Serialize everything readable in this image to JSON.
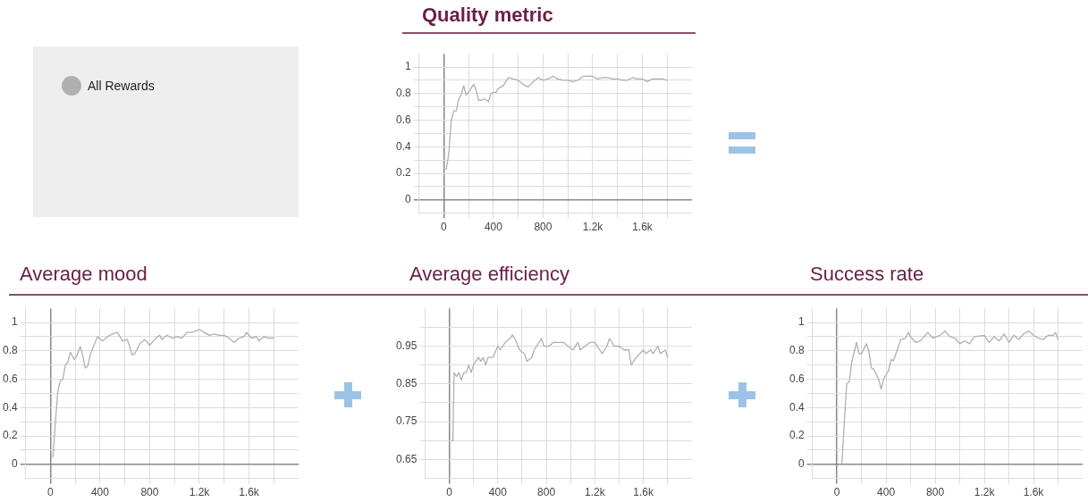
{
  "chart_data": [
    {
      "type": "line",
      "title": "Quality metric",
      "legend": "left",
      "grid": true,
      "xlim": [
        -200,
        2000
      ],
      "ylim": [
        -0.1,
        1.1
      ],
      "xticks": [
        0,
        {
          "value": 200,
          "label": null
        },
        400,
        {
          "value": 600,
          "label": null
        },
        800,
        {
          "value": 1000,
          "label": null
        },
        {
          "value": 1200,
          "label": "1.2k"
        },
        {
          "value": 1400,
          "label": null
        },
        {
          "value": 1600,
          "label": "1.6k"
        },
        {
          "value": 1800,
          "label": null
        }
      ],
      "yticks": [
        0,
        {
          "value": 0.1,
          "label": null
        },
        0.2,
        {
          "value": 0.3,
          "label": null
        },
        0.4,
        {
          "value": 0.5,
          "label": null
        },
        0.6,
        {
          "value": 0.7,
          "label": null
        },
        0.8,
        {
          "value": 0.9,
          "label": null
        },
        1
      ],
      "series": [
        {
          "name": "All Rewards",
          "color": "#b0b0b0",
          "x": [
            20,
            40,
            60,
            80,
            100,
            120,
            140,
            160,
            180,
            200,
            240,
            260,
            280,
            300,
            330,
            360,
            380,
            400,
            420,
            440,
            480,
            520,
            560,
            600,
            640,
            680,
            720,
            760,
            800,
            840,
            880,
            920,
            960,
            1000,
            1040,
            1080,
            1120,
            1160,
            1200,
            1240,
            1280,
            1320,
            1360,
            1400,
            1440,
            1480,
            1520,
            1560,
            1600,
            1640,
            1680,
            1720,
            1760,
            1800
          ],
          "values": [
            0.23,
            0.35,
            0.6,
            0.67,
            0.67,
            0.76,
            0.79,
            0.86,
            0.79,
            0.81,
            0.87,
            0.83,
            0.75,
            0.75,
            0.76,
            0.74,
            0.8,
            0.81,
            0.81,
            0.84,
            0.86,
            0.92,
            0.91,
            0.9,
            0.87,
            0.85,
            0.89,
            0.92,
            0.9,
            0.91,
            0.93,
            0.91,
            0.9,
            0.9,
            0.89,
            0.9,
            0.93,
            0.93,
            0.93,
            0.91,
            0.92,
            0.92,
            0.91,
            0.91,
            0.9,
            0.9,
            0.92,
            0.91,
            0.91,
            0.89,
            0.91,
            0.91,
            0.91,
            0.9
          ]
        }
      ]
    },
    {
      "type": "line",
      "title": "Average mood",
      "grid": true,
      "xlim": [
        -200,
        2000
      ],
      "ylim": [
        -0.1,
        1.1
      ],
      "xticks": [
        0,
        {
          "value": 200,
          "label": null
        },
        400,
        {
          "value": 600,
          "label": null
        },
        800,
        {
          "value": 1000,
          "label": null
        },
        {
          "value": 1200,
          "label": "1.2k"
        },
        {
          "value": 1400,
          "label": null
        },
        {
          "value": 1600,
          "label": "1.6k"
        },
        {
          "value": 1800,
          "label": null
        }
      ],
      "yticks": [
        0,
        {
          "value": 0.1,
          "label": null
        },
        0.2,
        {
          "value": 0.3,
          "label": null
        },
        0.4,
        {
          "value": 0.5,
          "label": null
        },
        0.6,
        {
          "value": 0.7,
          "label": null
        },
        0.8,
        {
          "value": 0.9,
          "label": null
        },
        1
      ],
      "series": [
        {
          "color": "#b0b0b0",
          "x": [
            20,
            40,
            60,
            80,
            100,
            120,
            140,
            160,
            190,
            210,
            240,
            260,
            280,
            300,
            320,
            360,
            380,
            420,
            460,
            500,
            540,
            580,
            620,
            660,
            680,
            720,
            760,
            800,
            840,
            880,
            900,
            940,
            980,
            1020,
            1060,
            1100,
            1140,
            1200,
            1240,
            1280,
            1320,
            1360,
            1400,
            1440,
            1480,
            1520,
            1560,
            1580,
            1620,
            1660,
            1680,
            1720,
            1760,
            1800
          ],
          "values": [
            0.05,
            0.3,
            0.52,
            0.59,
            0.6,
            0.7,
            0.72,
            0.79,
            0.74,
            0.76,
            0.83,
            0.77,
            0.68,
            0.69,
            0.77,
            0.86,
            0.9,
            0.87,
            0.9,
            0.92,
            0.93,
            0.87,
            0.88,
            0.77,
            0.78,
            0.85,
            0.88,
            0.84,
            0.88,
            0.91,
            0.88,
            0.91,
            0.89,
            0.9,
            0.89,
            0.93,
            0.93,
            0.95,
            0.93,
            0.91,
            0.92,
            0.91,
            0.91,
            0.89,
            0.86,
            0.89,
            0.9,
            0.93,
            0.89,
            0.9,
            0.87,
            0.9,
            0.89,
            0.89
          ]
        }
      ]
    },
    {
      "type": "line",
      "title": "Average efficiency",
      "grid": true,
      "xlim": [
        -200,
        2000
      ],
      "ylim": [
        0.6,
        1.05
      ],
      "xticks": [
        0,
        {
          "value": 200,
          "label": null
        },
        400,
        {
          "value": 600,
          "label": null
        },
        800,
        {
          "value": 1000,
          "label": null
        },
        {
          "value": 1200,
          "label": "1.2k"
        },
        {
          "value": 1400,
          "label": null
        },
        {
          "value": 1600,
          "label": "1.6k"
        },
        {
          "value": 1800,
          "label": null
        }
      ],
      "yticks": [
        0.65,
        {
          "value": 0.7,
          "label": null
        },
        0.75,
        {
          "value": 0.8,
          "label": null
        },
        0.85,
        {
          "value": 0.9,
          "label": null
        },
        0.95,
        {
          "value": 1,
          "label": null
        }
      ],
      "series": [
        {
          "color": "#b0b0b0",
          "x": [
            20,
            30,
            40,
            60,
            80,
            100,
            120,
            140,
            160,
            180,
            200,
            220,
            240,
            260,
            280,
            300,
            320,
            360,
            400,
            420,
            460,
            500,
            520,
            540,
            580,
            620,
            640,
            680,
            700,
            760,
            780,
            820,
            860,
            900,
            940,
            980,
            1020,
            1060,
            1080,
            1120,
            1160,
            1200,
            1260,
            1300,
            1320,
            1360,
            1400,
            1440,
            1480,
            1500,
            1540,
            1600,
            1620,
            1660,
            1680,
            1720,
            1740,
            1780,
            1800
          ],
          "values": [
            0.7,
            0.7,
            0.88,
            0.87,
            0.88,
            0.86,
            0.88,
            0.88,
            0.9,
            0.88,
            0.9,
            0.91,
            0.92,
            0.91,
            0.92,
            0.9,
            0.92,
            0.92,
            0.95,
            0.94,
            0.96,
            0.97,
            0.98,
            0.97,
            0.94,
            0.93,
            0.91,
            0.92,
            0.94,
            0.97,
            0.95,
            0.95,
            0.96,
            0.96,
            0.96,
            0.95,
            0.94,
            0.96,
            0.94,
            0.95,
            0.96,
            0.96,
            0.93,
            0.95,
            0.97,
            0.95,
            0.95,
            0.94,
            0.94,
            0.9,
            0.92,
            0.94,
            0.93,
            0.94,
            0.93,
            0.95,
            0.93,
            0.94,
            0.92
          ]
        }
      ]
    },
    {
      "type": "line",
      "title": "Success rate",
      "grid": true,
      "xlim": [
        -200,
        2000
      ],
      "ylim": [
        -0.1,
        1.1
      ],
      "xticks": [
        0,
        {
          "value": 200,
          "label": null
        },
        400,
        {
          "value": 600,
          "label": null
        },
        800,
        {
          "value": 1000,
          "label": null
        },
        {
          "value": 1200,
          "label": "1.2k"
        },
        {
          "value": 1400,
          "label": null
        },
        {
          "value": 1600,
          "label": "1.6k"
        },
        {
          "value": 1800,
          "label": null
        }
      ],
      "yticks": [
        0,
        {
          "value": 0.1,
          "label": null
        },
        0.2,
        {
          "value": 0.3,
          "label": null
        },
        0.4,
        {
          "value": 0.5,
          "label": null
        },
        0.6,
        {
          "value": 0.7,
          "label": null
        },
        0.8,
        {
          "value": 0.9,
          "label": null
        },
        1
      ],
      "series": [
        {
          "color": "#b0b0b0",
          "x": [
            40,
            60,
            80,
            100,
            120,
            160,
            180,
            200,
            240,
            260,
            280,
            300,
            340,
            360,
            380,
            420,
            440,
            460,
            480,
            520,
            560,
            580,
            600,
            640,
            680,
            740,
            780,
            840,
            880,
            920,
            960,
            1000,
            1040,
            1080,
            1120,
            1200,
            1240,
            1280,
            1320,
            1360,
            1400,
            1440,
            1480,
            1520,
            1560,
            1600,
            1640,
            1680,
            1720,
            1760,
            1780,
            1800
          ],
          "values": [
            0,
            0.3,
            0.57,
            0.58,
            0.72,
            0.86,
            0.78,
            0.78,
            0.85,
            0.8,
            0.68,
            0.67,
            0.6,
            0.53,
            0.6,
            0.66,
            0.74,
            0.73,
            0.78,
            0.88,
            0.89,
            0.93,
            0.9,
            0.86,
            0.87,
            0.93,
            0.89,
            0.91,
            0.94,
            0.9,
            0.89,
            0.85,
            0.87,
            0.85,
            0.9,
            0.91,
            0.86,
            0.9,
            0.87,
            0.92,
            0.86,
            0.91,
            0.88,
            0.92,
            0.94,
            0.91,
            0.89,
            0.88,
            0.91,
            0.91,
            0.93,
            0.88
          ]
        }
      ]
    }
  ]
}
